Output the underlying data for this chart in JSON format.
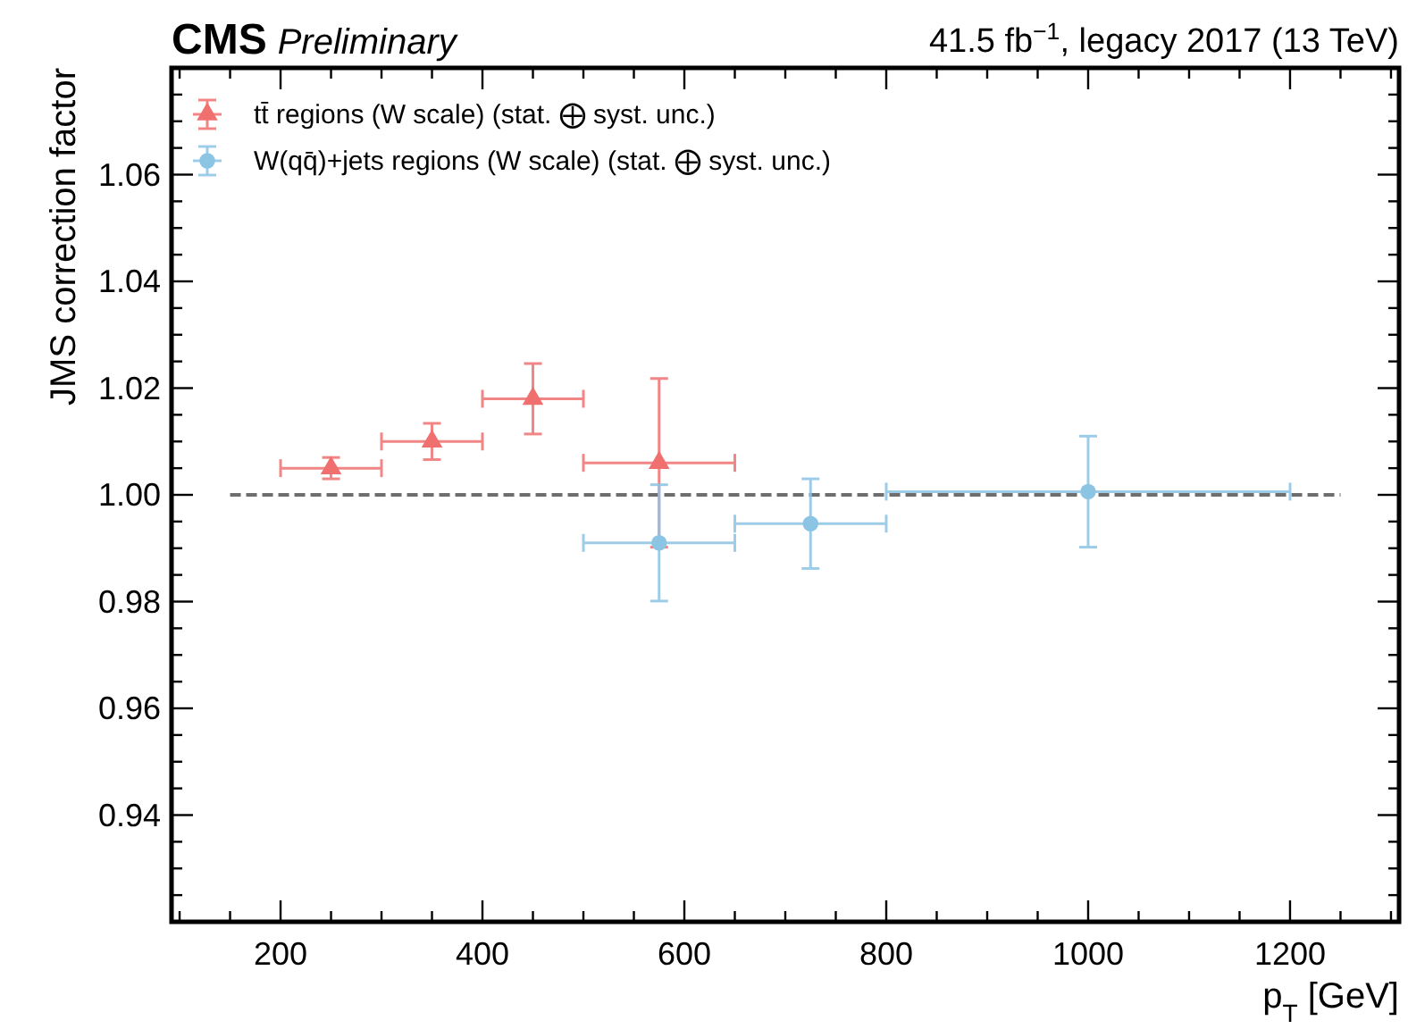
{
  "chart_data": {
    "type": "scatter",
    "title": "CMS",
    "subtitle": "Preliminary",
    "xlabel": "p$_{T}$ [GeV]",
    "ylabel": "JMS correction factor",
    "annotations": [
      "41.5 fb$^{−1}$, legacy 2017 (13 TeV)"
    ],
    "xlim": [
      92,
      1308
    ],
    "ylim": [
      0.92,
      1.08
    ],
    "xticks": [
      {
        "value": 100,
        "label": null
      },
      {
        "value": 150,
        "label": null
      },
      200,
      {
        "value": 250,
        "label": null
      },
      {
        "value": 300,
        "label": null
      },
      {
        "value": 350,
        "label": null
      },
      400,
      {
        "value": 450,
        "label": null
      },
      {
        "value": 500,
        "label": null
      },
      {
        "value": 550,
        "label": null
      },
      600,
      {
        "value": 650,
        "label": null
      },
      {
        "value": 700,
        "label": null
      },
      {
        "value": 750,
        "label": null
      },
      800,
      {
        "value": 850,
        "label": null
      },
      {
        "value": 900,
        "label": null
      },
      {
        "value": 950,
        "label": null
      },
      1000,
      {
        "value": 1050,
        "label": null
      },
      {
        "value": 1100,
        "label": null
      },
      {
        "value": 1150,
        "label": null
      },
      1200,
      {
        "value": 1250,
        "label": null
      },
      {
        "value": 1300,
        "label": null
      }
    ],
    "yticks": [
      {
        "value": 0.925,
        "label": null
      },
      {
        "value": 0.93,
        "label": null
      },
      {
        "value": 0.935,
        "label": null
      },
      {
        "value": 0.94,
        "label": "0.94"
      },
      {
        "value": 0.945,
        "label": null
      },
      {
        "value": 0.95,
        "label": null
      },
      {
        "value": 0.955,
        "label": null
      },
      {
        "value": 0.96,
        "label": "0.96"
      },
      {
        "value": 0.965,
        "label": null
      },
      {
        "value": 0.97,
        "label": null
      },
      {
        "value": 0.975,
        "label": null
      },
      {
        "value": 0.98,
        "label": "0.98"
      },
      {
        "value": 0.985,
        "label": null
      },
      {
        "value": 0.99,
        "label": null
      },
      {
        "value": 0.995,
        "label": null
      },
      {
        "value": 1.0,
        "label": "1.00"
      },
      {
        "value": 1.005,
        "label": null
      },
      {
        "value": 1.01,
        "label": null
      },
      {
        "value": 1.015,
        "label": null
      },
      {
        "value": 1.02,
        "label": "1.02"
      },
      {
        "value": 1.025,
        "label": null
      },
      {
        "value": 1.03,
        "label": null
      },
      {
        "value": 1.035,
        "label": null
      },
      {
        "value": 1.04,
        "label": "1.04"
      },
      {
        "value": 1.045,
        "label": null
      },
      {
        "value": 1.05,
        "label": null
      },
      {
        "value": 1.055,
        "label": null
      },
      {
        "value": 1.06,
        "label": "1.06"
      },
      {
        "value": 1.065,
        "label": null
      },
      {
        "value": 1.07,
        "label": null
      },
      {
        "value": 1.075,
        "label": null
      }
    ],
    "grid": false,
    "legend": "top left",
    "series": [
      {
        "type": "line",
        "color": "#6e6e6e",
        "line_style": "dashed",
        "marker": "none",
        "x": [
          150,
          1250
        ],
        "values": [
          1.0,
          1.0
        ]
      },
      {
        "name": "tt̄ regions (W scale) (stat. ⨁ syst. unc.)",
        "color": "#f07070",
        "marker": "triangle",
        "x": [
          250,
          350,
          450,
          575
        ],
        "values": [
          1.005,
          1.01,
          1.018,
          1.006
        ],
        "errors": [
          0.002,
          0.0034,
          0.0066,
          0.0158
        ],
        "xerrors": [
          50,
          50,
          50,
          75
        ]
      },
      {
        "name": "W(qq̄)+jets regions (W scale) (stat. ⨁ syst. unc.)",
        "color": "#8cc4e4",
        "marker": "circle",
        "x": [
          575,
          725,
          1000
        ],
        "values": [
          0.991,
          0.9946,
          1.0006
        ],
        "errors": [
          0.0109,
          0.0084,
          0.0104
        ],
        "xerrors": [
          75,
          75,
          200
        ]
      }
    ]
  }
}
